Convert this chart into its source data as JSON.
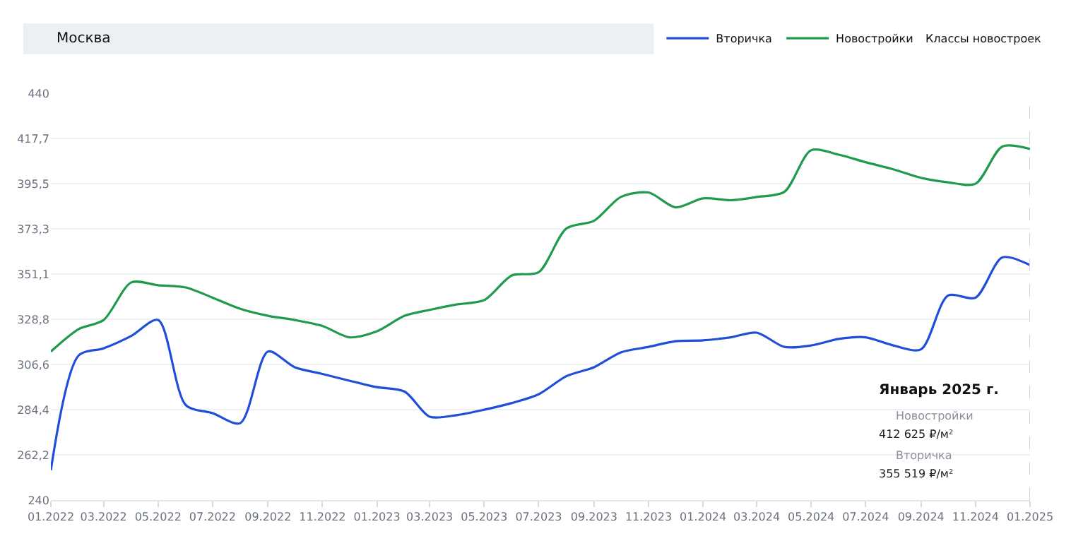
{
  "chart_data": {
    "type": "line",
    "x": [
      "2022-01",
      "2022-02",
      "2022-03",
      "2022-04",
      "2022-05",
      "2022-06",
      "2022-07",
      "2022-08",
      "2022-09",
      "2022-10",
      "2022-11",
      "2022-12",
      "2023-01",
      "2023-02",
      "2023-03",
      "2023-04",
      "2023-05",
      "2023-06",
      "2023-07",
      "2023-08",
      "2023-09",
      "2023-10",
      "2023-11",
      "2023-12",
      "2024-01",
      "2024-02",
      "2024-03",
      "2024-04",
      "2024-05",
      "2024-06",
      "2024-07",
      "2024-08",
      "2024-09",
      "2024-10",
      "2024-11",
      "2024-12",
      "2025-01"
    ],
    "series": [
      {
        "name": "Новостройки",
        "color": "#1f9a4e",
        "values": [
          313,
          324,
          328.5,
          347,
          345.6,
          344.5,
          339.5,
          334,
          330.6,
          328.5,
          325.6,
          320,
          323,
          330.6,
          333.5,
          336.2,
          338.3,
          350.4,
          352,
          373.5,
          377.3,
          389,
          391.2,
          383.9,
          388.3,
          387.4,
          389,
          391.5,
          412,
          409.8,
          406.1,
          402.6,
          398.4,
          396.2,
          395.5,
          413.8,
          412.6
        ]
      },
      {
        "name": "Вторичка",
        "color": "#1f4fd8",
        "values": [
          254.7,
          311,
          314.6,
          320.7,
          328.5,
          286.7,
          282.7,
          277.8,
          313,
          305.3,
          302,
          298.7,
          295.5,
          293.3,
          281,
          281.8,
          284.4,
          287.7,
          292,
          300.9,
          305.3,
          312.6,
          315.3,
          318.1,
          318.5,
          320,
          322.3,
          315.3,
          316,
          319.2,
          320,
          316,
          314.1,
          340.5,
          339.5,
          359.3,
          355.5
        ]
      }
    ],
    "xlim": [
      "2022-01",
      "2025-01"
    ],
    "xticks": [
      {
        "value": "2022-01",
        "label": "01.2022"
      },
      {
        "value": "2022-03",
        "label": "03.2022"
      },
      {
        "value": "2022-05",
        "label": "05.2022"
      },
      {
        "value": "2022-07",
        "label": "07.2022"
      },
      {
        "value": "2022-09",
        "label": "09.2022"
      },
      {
        "value": "2022-11",
        "label": "11.2022"
      },
      {
        "value": "2023-01",
        "label": "01.2023"
      },
      {
        "value": "2023-03",
        "label": "03.2023"
      },
      {
        "value": "2023-05",
        "label": "05.2023"
      },
      {
        "value": "2023-07",
        "label": "07.2023"
      },
      {
        "value": "2023-09",
        "label": "09.2023"
      },
      {
        "value": "2023-11",
        "label": "11.2023"
      },
      {
        "value": "2024-01",
        "label": "01.2024"
      },
      {
        "value": "2024-03",
        "label": "03.2024"
      },
      {
        "value": "2024-05",
        "label": "05.2024"
      },
      {
        "value": "2024-07",
        "label": "07.2024"
      },
      {
        "value": "2024-09",
        "label": "09.2024"
      },
      {
        "value": "2024-11",
        "label": "11.2024"
      },
      {
        "value": "2025-01",
        "label": "01.2025"
      }
    ],
    "ylim": [
      240,
      440
    ],
    "yticks": [
      240,
      {
        "value": 262.2,
        "label": "262,2"
      },
      {
        "value": 284.4,
        "label": "284,4"
      },
      {
        "value": 306.6,
        "label": "306,6"
      },
      {
        "value": 328.8,
        "label": "328,8"
      },
      {
        "value": 351.1,
        "label": "351,1"
      },
      {
        "value": 373.3,
        "label": "373,3"
      },
      {
        "value": 395.5,
        "label": "395,5"
      },
      {
        "value": 417.7,
        "label": "417,7"
      },
      440
    ],
    "grid": "y",
    "legend": "top right",
    "line_style": "solid",
    "ref_lines": [
      {
        "axis": "x",
        "value": "2025-01",
        "line_style": "dashed",
        "color": "#d0d4da"
      }
    ],
    "annotations": [
      "Москва",
      "Классы новостроек",
      "Январь 2025 г.",
      "Новостройки",
      "412 625 ₽/м²",
      "Вторичка",
      "355 519 ₽/м²"
    ]
  }
}
